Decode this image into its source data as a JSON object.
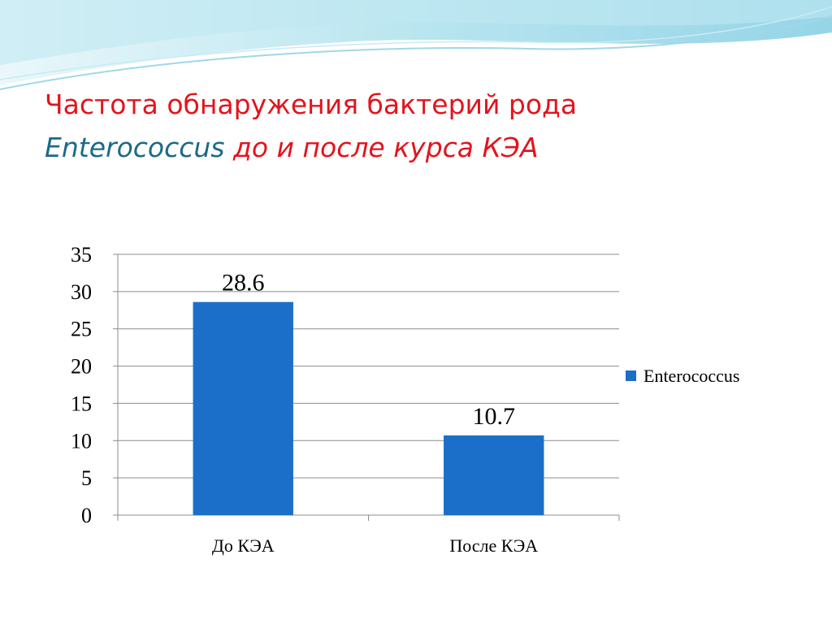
{
  "chart_data": {
    "type": "bar",
    "title_runs": [
      "Частота обнаружения бактерий рода",
      "Enterococcus",
      "до и после курса КЭА"
    ],
    "categories": [
      "До КЭА",
      "После КЭА"
    ],
    "series": [
      {
        "name": "Enterococcus",
        "color": "#1b6fc8",
        "values": [
          28.6,
          10.7
        ]
      }
    ],
    "ylim": [
      0,
      35
    ],
    "yticks": [
      0,
      5,
      10,
      15,
      20,
      25,
      30,
      35
    ],
    "grid": true,
    "legend": "right"
  }
}
